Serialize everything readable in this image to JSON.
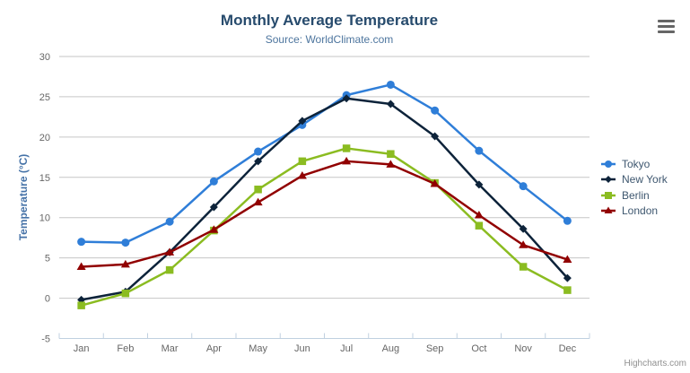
{
  "chart_data": {
    "type": "line",
    "title": "Monthly Average Temperature",
    "subtitle": "Source: WorldClimate.com",
    "categories": [
      "Jan",
      "Feb",
      "Mar",
      "Apr",
      "May",
      "Jun",
      "Jul",
      "Aug",
      "Sep",
      "Oct",
      "Nov",
      "Dec"
    ],
    "series": [
      {
        "name": "Tokyo",
        "color": "#2f7ed8",
        "marker": "circle",
        "values": [
          7.0,
          6.9,
          9.5,
          14.5,
          18.2,
          21.5,
          25.2,
          26.5,
          23.3,
          18.3,
          13.9,
          9.6
        ]
      },
      {
        "name": "New York",
        "color": "#0d233a",
        "marker": "diamond",
        "values": [
          -0.2,
          0.8,
          5.7,
          11.3,
          17.0,
          22.0,
          24.8,
          24.1,
          20.1,
          14.1,
          8.6,
          2.5
        ]
      },
      {
        "name": "Berlin",
        "color": "#8bbc21",
        "marker": "square",
        "values": [
          -0.9,
          0.6,
          3.5,
          8.4,
          13.5,
          17.0,
          18.6,
          17.9,
          14.3,
          9.0,
          3.9,
          1.0
        ]
      },
      {
        "name": "London",
        "color": "#910000",
        "marker": "triangle",
        "values": [
          3.9,
          4.2,
          5.7,
          8.5,
          11.9,
          15.2,
          17.0,
          16.6,
          14.2,
          10.3,
          6.6,
          4.8
        ]
      }
    ],
    "xlabel": "",
    "ylabel": "Temperature (°C)",
    "ylim": [
      -5,
      30
    ],
    "yticks": [
      -5,
      0,
      5,
      10,
      15,
      20,
      25,
      30
    ],
    "grid": true,
    "legend_position": "right"
  },
  "colors": {
    "title": "#274b6d",
    "subtitle": "#4d759e",
    "axis_labels": "#666666",
    "yaxis_title": "#4572a7",
    "gridline": "#c6c6c6",
    "axis_line": "#c0d0e0",
    "legend_text": "#3e576f",
    "credits": "#909090",
    "menu_icon": "#666666",
    "background": "#ffffff"
  },
  "toolbar": {
    "menu_icon": "hamburger-menu-icon"
  },
  "credits": {
    "label": "Highcharts.com"
  }
}
